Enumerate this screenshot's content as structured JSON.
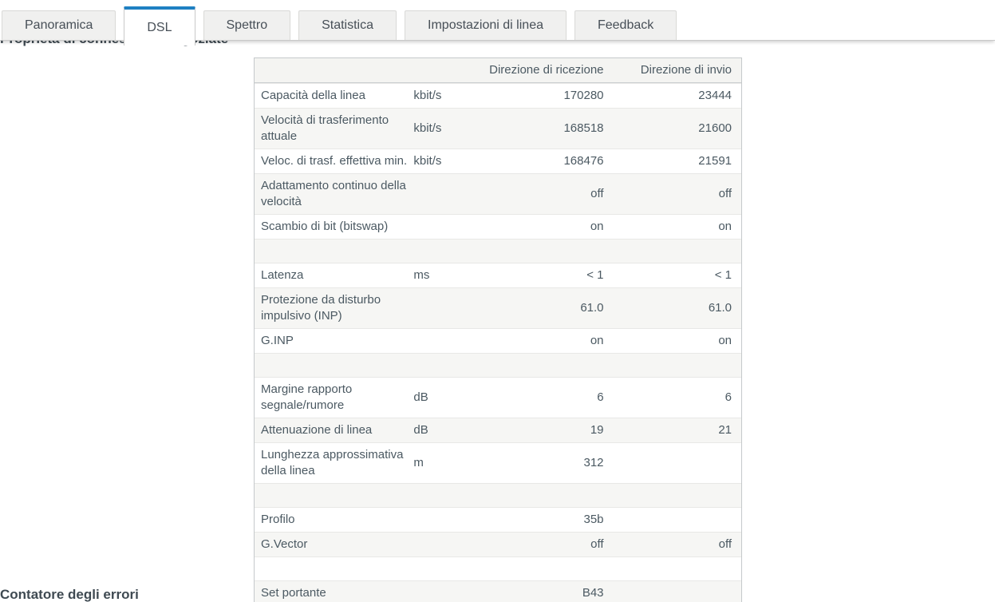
{
  "colors": {
    "accent_blue": "#1f80c2",
    "tab_inactive_bg": "#f0f0ef",
    "table_border": "#c5c9cb",
    "row_alt_bg": "#f6f6f4",
    "text": "#4b5962"
  },
  "tabs": [
    {
      "label": "Panoramica",
      "active": false
    },
    {
      "label": "DSL",
      "active": true
    },
    {
      "label": "Spettro",
      "active": false
    },
    {
      "label": "Statistica",
      "active": false
    },
    {
      "label": "Impostazioni di linea",
      "active": false
    },
    {
      "label": "Feedback",
      "active": false
    }
  ],
  "sections": {
    "negotiated_title": "Proprietà di connessione negoziate",
    "errors_title": "Contatore degli errori"
  },
  "table": {
    "headers": {
      "label": "",
      "unit": "",
      "rx": "Direzione di ricezione",
      "tx": "Direzione di invio"
    },
    "rows": [
      {
        "label": "Capacità della linea",
        "unit": "kbit/s",
        "rx": "170280",
        "tx": "23444"
      },
      {
        "label": "Velocità di trasferimento attuale",
        "unit": "kbit/s",
        "rx": "168518",
        "tx": "21600"
      },
      {
        "label": "Veloc. di trasf. effettiva min.",
        "unit": "kbit/s",
        "rx": "168476",
        "tx": "21591"
      },
      {
        "label": "Adattamento continuo della velocità",
        "unit": "",
        "rx": "off",
        "tx": "off"
      },
      {
        "label": "Scambio di bit (bitswap)",
        "unit": "",
        "rx": "on",
        "tx": "on"
      },
      {
        "spacer": true
      },
      {
        "label": "Latenza",
        "unit": "ms",
        "rx": "< 1",
        "tx": "< 1"
      },
      {
        "label": "Protezione da disturbo impulsivo (INP)",
        "unit": "",
        "rx": "61.0",
        "tx": "61.0"
      },
      {
        "label": "G.INP",
        "unit": "",
        "rx": "on",
        "tx": "on"
      },
      {
        "spacer": true
      },
      {
        "label": "Margine rapporto segnale/rumore",
        "unit": "dB",
        "rx": "6",
        "tx": "6"
      },
      {
        "label": "Attenuazione di linea",
        "unit": "dB",
        "rx": "19",
        "tx": "21"
      },
      {
        "label": "Lunghezza approssimativa della linea",
        "unit": "m",
        "rx": "312",
        "tx": ""
      },
      {
        "spacer": true
      },
      {
        "label": "Profilo",
        "unit": "",
        "rx": "35b",
        "tx": ""
      },
      {
        "label": "G.Vector",
        "unit": "",
        "rx": "off",
        "tx": "off"
      },
      {
        "spacer": true
      },
      {
        "label": "Set portante",
        "unit": "",
        "rx": "B43",
        "tx": ""
      }
    ]
  }
}
